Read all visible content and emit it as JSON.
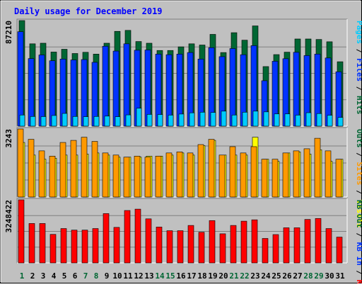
{
  "chart_data": {
    "type": "bar",
    "title": "Daily usage for December 2019",
    "categories": [
      "1",
      "2",
      "3",
      "4",
      "5",
      "6",
      "7",
      "8",
      "9",
      "10",
      "11",
      "12",
      "13",
      "14",
      "15",
      "16",
      "17",
      "18",
      "19",
      "20",
      "21",
      "22",
      "23",
      "24",
      "25",
      "26",
      "27",
      "28",
      "29",
      "30",
      "31"
    ],
    "weekend_days": [
      "1",
      "7",
      "8",
      "14",
      "15",
      "21",
      "22",
      "28",
      "29"
    ],
    "colors": {
      "background": "#c0c0c0",
      "title": "#0000ff",
      "hits": "#006633",
      "files": "#0033ff",
      "pages": "#00ccff",
      "visits": "#ffff00",
      "sites": "#ff9900",
      "kb_out": "#006633",
      "kb_in": "#0033ff",
      "kb_f": "#ff0000",
      "weekday_label": "#000000",
      "weekend_label": "#006633"
    },
    "panels": [
      {
        "id": "requests",
        "max_label": "87210",
        "ylim": [
          0,
          87210
        ],
        "legend": [
          {
            "name": "Hits",
            "color": "#006633"
          },
          {
            "name": "Files",
            "color": "#0033ff"
          },
          {
            "name": "Pages",
            "color": "#00ccff"
          }
        ],
        "series": [
          {
            "name": "Hits",
            "color": "#006633",
            "values": [
              87210,
              68000,
              68500,
              61200,
              63500,
              60000,
              61000,
              59500,
              68500,
              78300,
              79100,
              69900,
              68500,
              62500,
              62500,
              65500,
              68000,
              67000,
              75800,
              60800,
              77200,
              71000,
              82800,
              49200,
              59100,
              61100,
              72000,
              72000,
              71600,
              69700,
              53200
            ]
          },
          {
            "name": "Files",
            "color": "#0033ff",
            "values": [
              78000,
              55800,
              58800,
              54000,
              55400,
              54700,
              55000,
              52700,
              66000,
              62000,
              68000,
              62700,
              62900,
              59500,
              59000,
              59500,
              60800,
              55400,
              64800,
              57400,
              64100,
              59000,
              66500,
              37500,
              53600,
              55700,
              61000,
              58300,
              59500,
              56300,
              44900
            ]
          },
          {
            "name": "Pages",
            "color": "#00ccff",
            "values": [
              9200,
              8000,
              7900,
              8800,
              10500,
              8000,
              7800,
              8000,
              8300,
              7800,
              9300,
              14800,
              9700,
              9600,
              9100,
              10000,
              11000,
              11500,
              11300,
              12400,
              9200,
              11500,
              12400,
              11800,
              10100,
              10100,
              9100,
              11100,
              10400,
              9000,
              7200
            ]
          }
        ]
      },
      {
        "id": "visits",
        "max_label": "3243",
        "ylim": [
          0,
          3243
        ],
        "legend": [
          {
            "name": "Visits",
            "color": "#ffff00"
          },
          {
            "name": "Sites",
            "color": "#ff9900"
          },
          {
            "name": "Outs",
            "color": "#006633"
          }
        ],
        "series": [
          {
            "name": "Visits",
            "color": "#ffff00",
            "values": [
              2600,
              2000,
              1800,
              1850,
              2000,
              2000,
              2050,
              2100,
              2000,
              1900,
              1900,
              1900,
              1950,
              1950,
              2000,
              2100,
              2000,
              2450,
              2700,
              2000,
              2000,
              2000,
              2850,
              1800,
              1700,
              2100,
              2150,
              2050,
              2250,
              1700,
              1800
            ]
          },
          {
            "name": "Sites",
            "color": "#ff9900",
            "values": [
              3243,
              2750,
              2200,
              1950,
              2600,
              2700,
              2850,
              2650,
              2100,
              2000,
              1900,
              1950,
              1900,
              1950,
              2100,
              2150,
              2100,
              2500,
              2750,
              2000,
              2400,
              2100,
              2400,
              1800,
              1800,
              2100,
              2200,
              2300,
              2800,
              2200,
              1800
            ]
          }
        ]
      },
      {
        "id": "kbytes",
        "max_label": "3248422",
        "ylim": [
          0,
          3248422
        ],
        "legend": [
          {
            "name": "KB F",
            "color": "#ff0000"
          },
          {
            "name": "KB In",
            "color": "#0033ff"
          },
          {
            "name": "KB Out",
            "color": "#006633"
          }
        ],
        "series": [
          {
            "name": "KB F",
            "color": "#ff0000",
            "values": [
              3248422,
              2030000,
              2030000,
              1470000,
              1770000,
              1690000,
              1690000,
              1770000,
              2540000,
              1830000,
              2700000,
              2770000,
              2270000,
              1850000,
              1660000,
              1660000,
              1930000,
              1580000,
              2180000,
              1500000,
              1930000,
              2150000,
              2220000,
              1260000,
              1460000,
              1810000,
              1810000,
              2240000,
              2290000,
              1770000,
              1330000
            ]
          }
        ]
      }
    ]
  }
}
